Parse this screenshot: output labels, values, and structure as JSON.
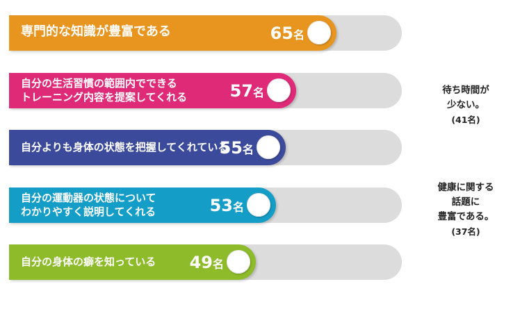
{
  "chart_data": {
    "type": "bar",
    "orientation": "horizontal",
    "unit": "名",
    "xlim": [
      0,
      78
    ],
    "categories": [
      "専門的な知識が豊富である",
      "自分の生活習慣の範囲内でできる\nトレーニング内容を提案してくれる",
      "自分よりも身体の状態を把握してくれている",
      "自分の運動器の状態について\nわかりやすく説明してくれる",
      "自分の身体の癖を知っている"
    ],
    "values": [
      65,
      57,
      55,
      53,
      49
    ],
    "colors": [
      "#e8951f",
      "#df2a78",
      "#3b4a9b",
      "#139dc7",
      "#8dbb2a"
    ],
    "annotations": [
      {
        "text": "待ち時間が\n少ない。",
        "count": "(41名)"
      },
      {
        "text": "健康に関する\n話題に\n豊富である。",
        "count": "(37名)"
      }
    ]
  }
}
